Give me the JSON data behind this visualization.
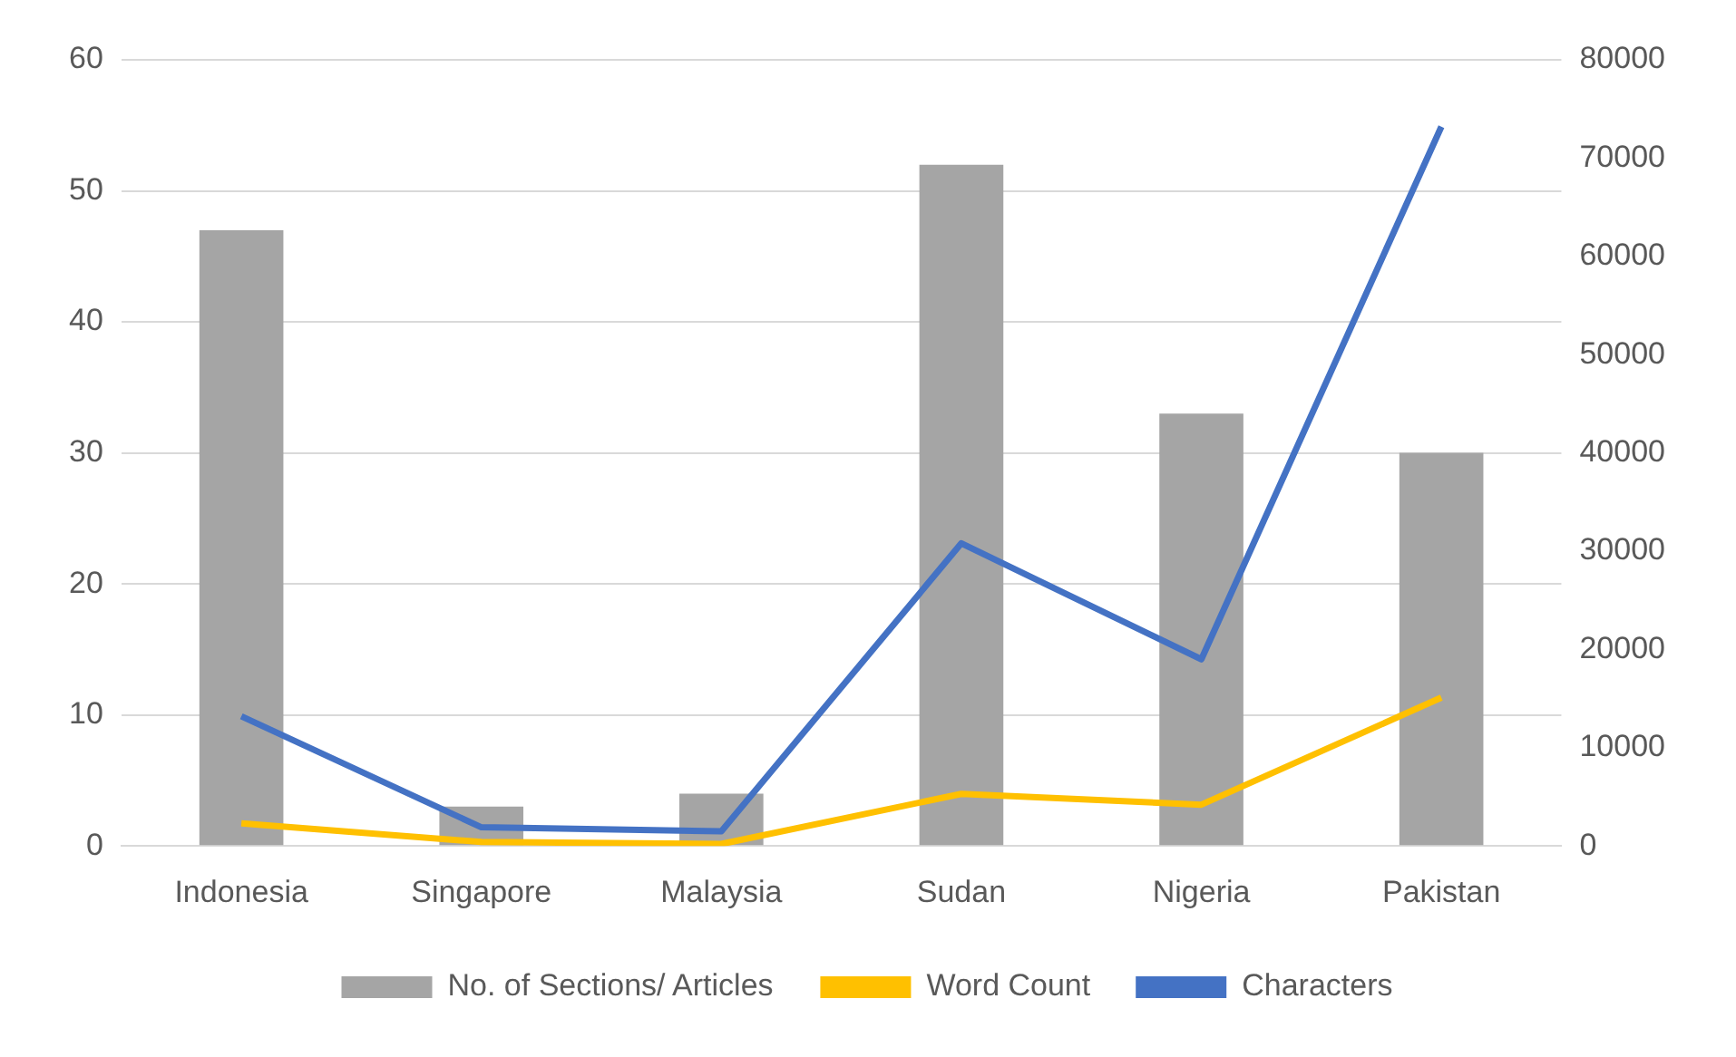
{
  "chart_data": {
    "type": "bar",
    "categories": [
      "Indonesia",
      "Singapore",
      "Malaysia",
      "Sudan",
      "Nigeria",
      "Pakistan"
    ],
    "series": [
      {
        "name": "No. of Sections/ Articles",
        "color": "#a5a5a5",
        "values": [
          47,
          3,
          4,
          52,
          33,
          30
        ]
      },
      {
        "name": "Word Count",
        "type": "line",
        "axis": "y2",
        "color": "#ffc000",
        "values": [
          2300,
          400,
          200,
          5300,
          4200,
          15100
        ]
      },
      {
        "name": "Characters",
        "type": "line",
        "axis": "y2",
        "color": "#4472c4",
        "values": [
          13200,
          1900,
          1500,
          30800,
          19000,
          73200
        ]
      }
    ],
    "ylim": [
      0,
      60
    ],
    "yticks": [
      0,
      10,
      20,
      30,
      40,
      50,
      60
    ],
    "y2lim": [
      0,
      80000
    ],
    "y2ticks": [
      0,
      10000,
      20000,
      30000,
      40000,
      50000,
      60000,
      70000,
      80000
    ],
    "grid": "y",
    "legend": "bottom",
    "marker": "none"
  }
}
